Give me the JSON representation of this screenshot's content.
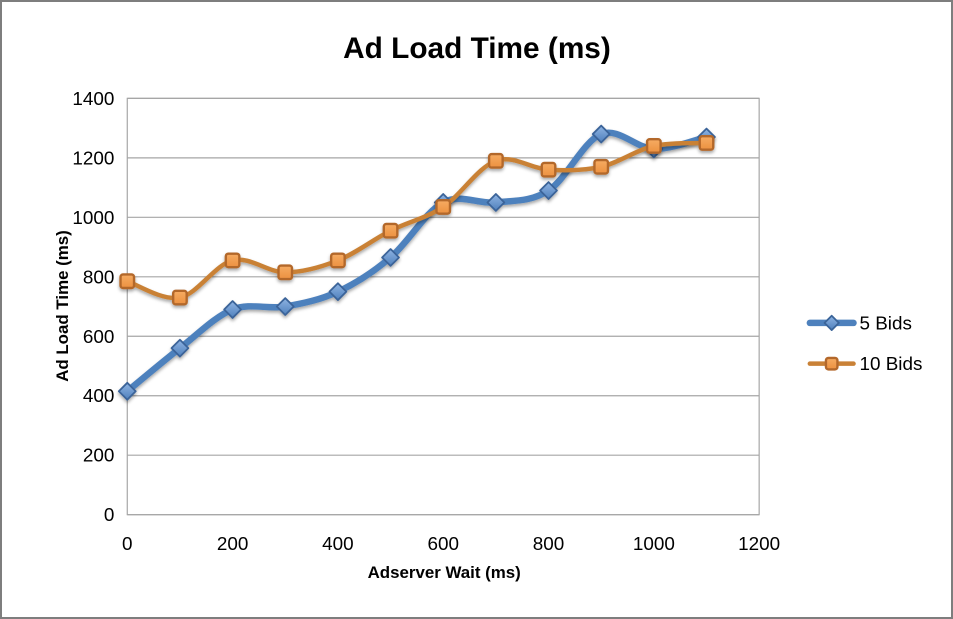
{
  "window": {
    "background": "#ffffff",
    "border_color": "#7e7e7e"
  },
  "chart_data": {
    "type": "line",
    "title": "Ad Load Time (ms)",
    "xlabel": "Adserver Wait (ms)",
    "ylabel": "Ad Load Time (ms)",
    "xlim": [
      0,
      1200
    ],
    "ylim": [
      0,
      1400
    ],
    "xtick_step": 200,
    "ytick_step": 200,
    "grid": "horizontal",
    "legend_position": "right",
    "smooth": true,
    "x": [
      0,
      100,
      200,
      300,
      400,
      500,
      600,
      700,
      800,
      900,
      1000,
      1100
    ],
    "series": [
      {
        "name": "5 Bids",
        "marker": "diamond",
        "line_color": "#4E81BD",
        "line_width": 6.5,
        "marker_fill_light": "#8FB4E3",
        "marker_fill": "#4F80BC",
        "marker_border": "#3A6499",
        "values": [
          415,
          560,
          690,
          700,
          750,
          865,
          1050,
          1050,
          1090,
          1280,
          1230,
          1270
        ]
      },
      {
        "name": "10 Bids",
        "marker": "square",
        "line_color": "#C98136",
        "line_width": 4.5,
        "marker_fill_light": "#F6AC63",
        "marker_fill": "#EC9140",
        "marker_border": "#B3682B",
        "values": [
          785,
          730,
          855,
          815,
          855,
          955,
          1035,
          1190,
          1160,
          1170,
          1240,
          1250
        ]
      }
    ],
    "colors": {
      "grid": "#A6A6A6",
      "text": "#000000"
    }
  }
}
